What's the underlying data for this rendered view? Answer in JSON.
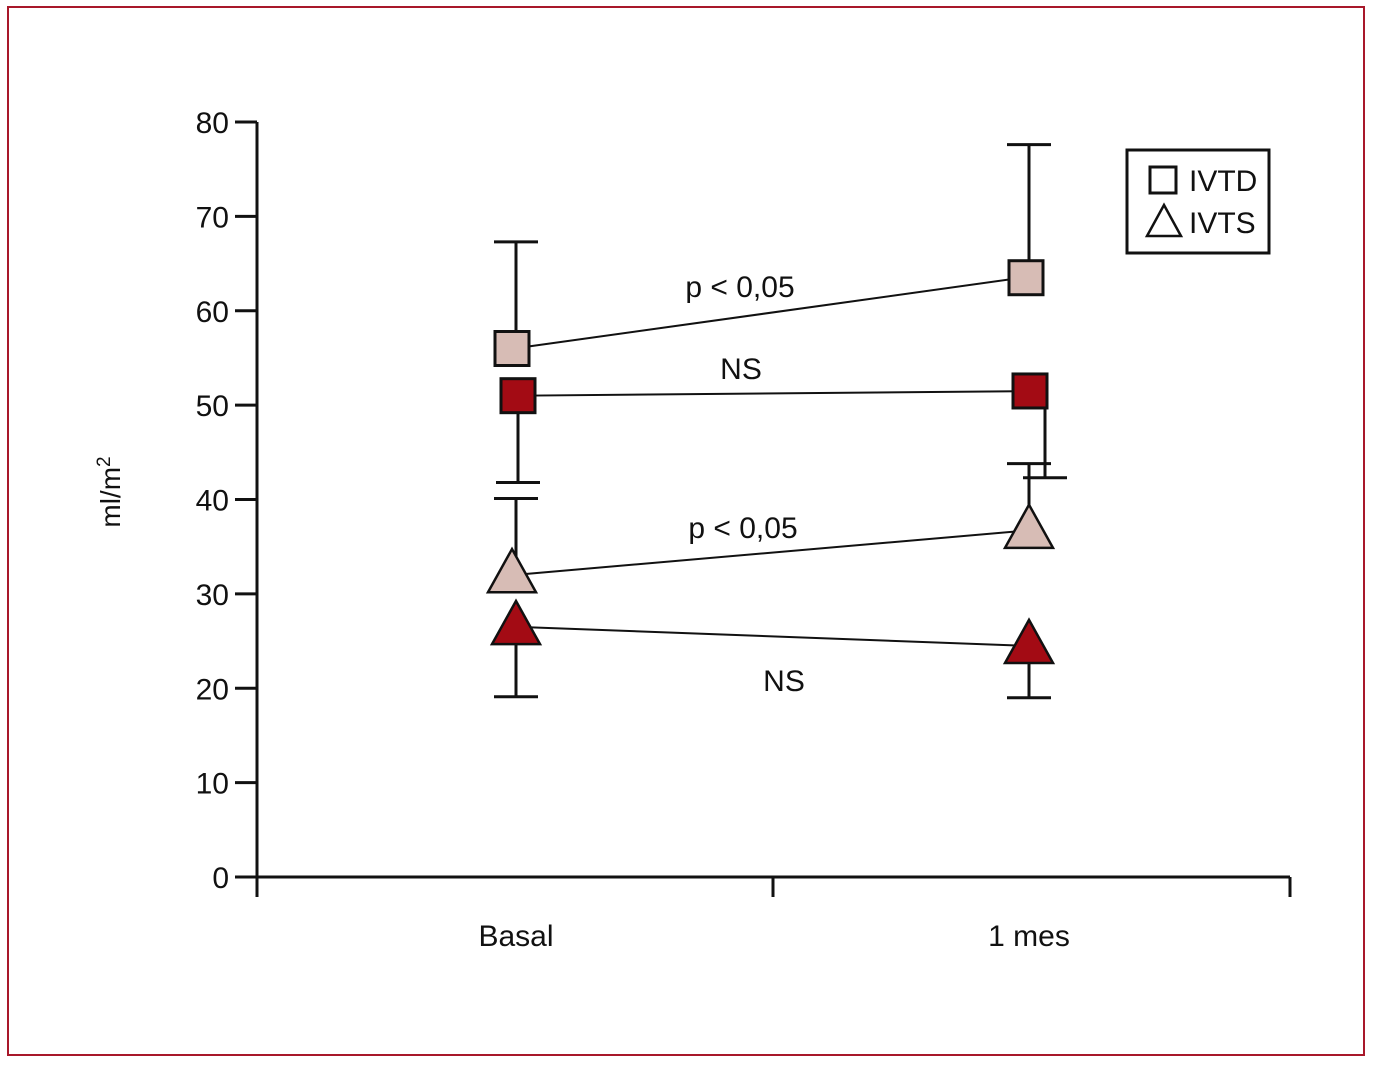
{
  "chart_data": {
    "type": "scatter",
    "ylabel": "ml/m",
    "ylabel_sup": "2",
    "xlabel": "",
    "categories": [
      "Basal",
      "1 mes"
    ],
    "ylim": [
      0,
      80
    ],
    "yticks": [
      0,
      10,
      20,
      30,
      40,
      50,
      60,
      70,
      80
    ],
    "grid": false,
    "legend": {
      "placement": "top-right",
      "entries": [
        {
          "label": "IVTD",
          "marker": "square"
        },
        {
          "label": "IVTS",
          "marker": "triangle"
        }
      ]
    },
    "series": [
      {
        "marker": "square",
        "color": "#d7bcb5",
        "values": [
          56,
          63.5
        ],
        "err_upper": [
          67.3,
          77.6
        ],
        "err_lower": [
          null,
          null
        ]
      },
      {
        "marker": "square",
        "color": "#a30b14",
        "values": [
          51,
          51.5
        ],
        "err_upper": [
          null,
          null
        ],
        "err_lower": [
          41.8,
          42.3
        ]
      },
      {
        "marker": "triangle",
        "color": "#d7bcb5",
        "values": [
          32,
          36.7
        ],
        "err_upper": [
          40.1,
          43.8
        ],
        "err_lower": [
          null,
          null
        ]
      },
      {
        "marker": "triangle",
        "color": "#a30b14",
        "values": [
          26.5,
          24.5
        ],
        "err_upper": [
          null,
          null
        ],
        "err_lower": [
          19.1,
          19
        ]
      }
    ],
    "annotations": [
      {
        "text": "p < 0,05",
        "series": 0
      },
      {
        "text": "NS",
        "series": 1
      },
      {
        "text": "p < 0,05",
        "series": 2
      },
      {
        "text": "NS",
        "series": 3
      }
    ]
  }
}
